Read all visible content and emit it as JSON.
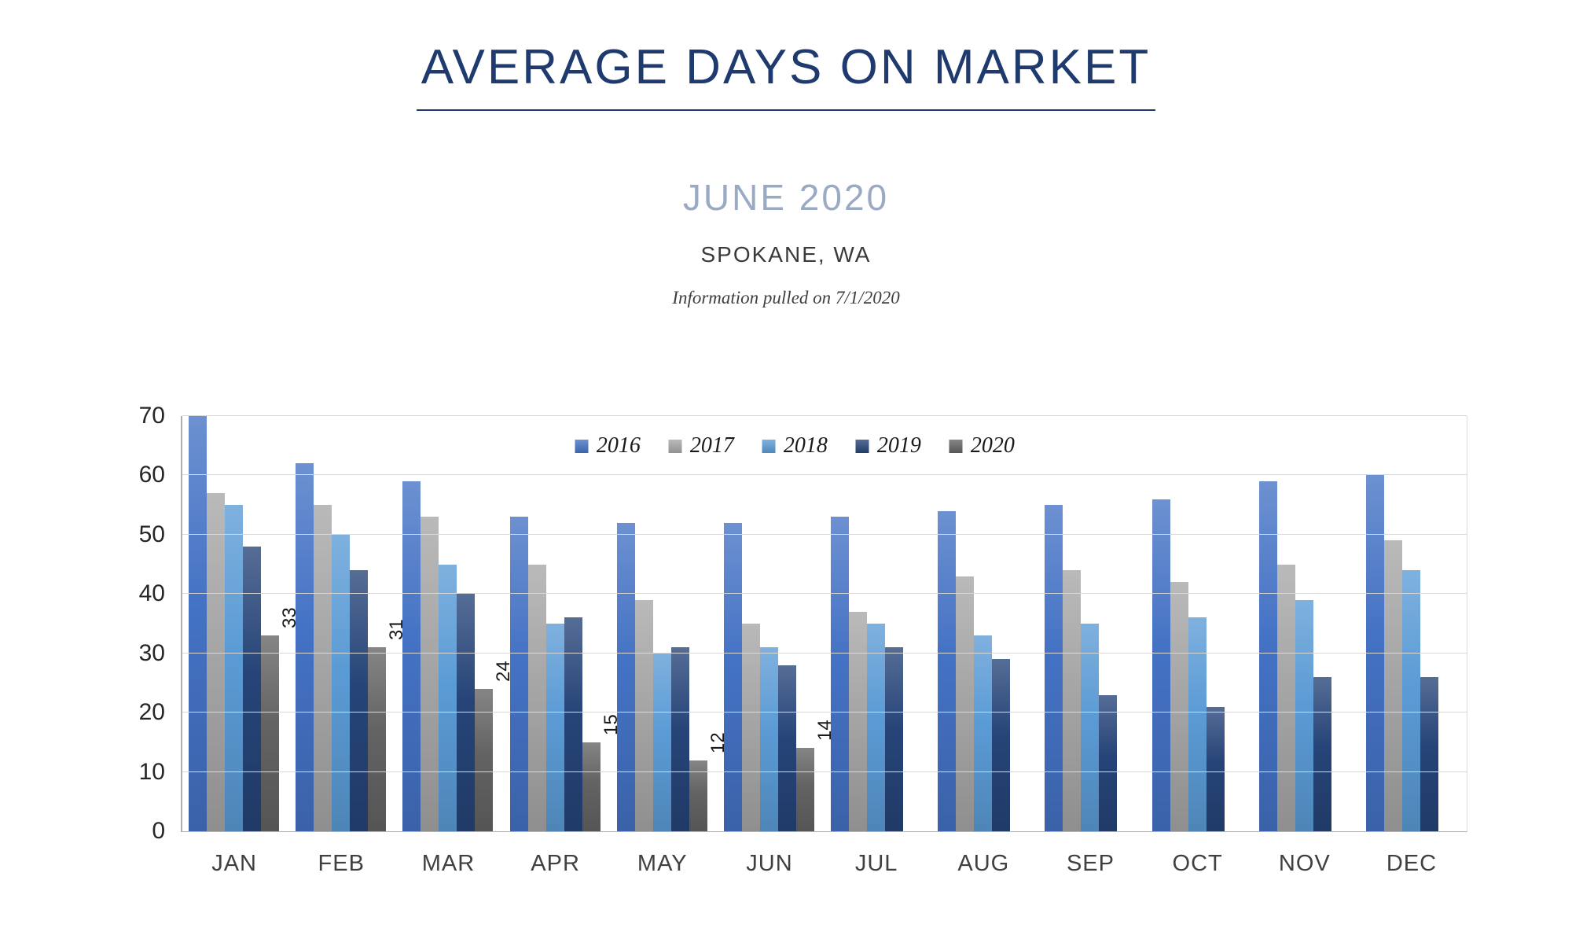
{
  "header": {
    "title": "AVERAGE DAYS ON MARKET",
    "subtitle": "JUNE 2020",
    "location": "SPOKANE, WA",
    "note": "Information pulled on 7/1/2020"
  },
  "chart_data": {
    "type": "bar",
    "title": "AVERAGE DAYS ON MARKET",
    "xlabel": "",
    "ylabel": "",
    "ylim": [
      0,
      70
    ],
    "yticks": [
      0,
      10,
      20,
      30,
      40,
      50,
      60,
      70
    ],
    "grid": true,
    "legend_position": "top-center-inside",
    "categories": [
      "JAN",
      "FEB",
      "MAR",
      "APR",
      "MAY",
      "JUN",
      "JUL",
      "AUG",
      "SEP",
      "OCT",
      "NOV",
      "DEC"
    ],
    "series": [
      {
        "name": "2016",
        "color": "#4472c4",
        "values": [
          70,
          62,
          59,
          53,
          52,
          52,
          53,
          54,
          55,
          56,
          59,
          60
        ]
      },
      {
        "name": "2017",
        "color": "#a6a6a6",
        "values": [
          57,
          55,
          53,
          45,
          39,
          35,
          37,
          43,
          44,
          42,
          45,
          49
        ]
      },
      {
        "name": "2018",
        "color": "#5b9bd5",
        "values": [
          55,
          50,
          45,
          35,
          30,
          31,
          35,
          33,
          35,
          36,
          39,
          44
        ]
      },
      {
        "name": "2019",
        "color": "#264478",
        "values": [
          48,
          44,
          40,
          36,
          31,
          28,
          31,
          29,
          23,
          21,
          26,
          26
        ]
      },
      {
        "name": "2020",
        "color": "#636363",
        "data_labels": true,
        "values": [
          33,
          31,
          24,
          15,
          12,
          14,
          null,
          null,
          null,
          null,
          null,
          null
        ]
      }
    ]
  }
}
